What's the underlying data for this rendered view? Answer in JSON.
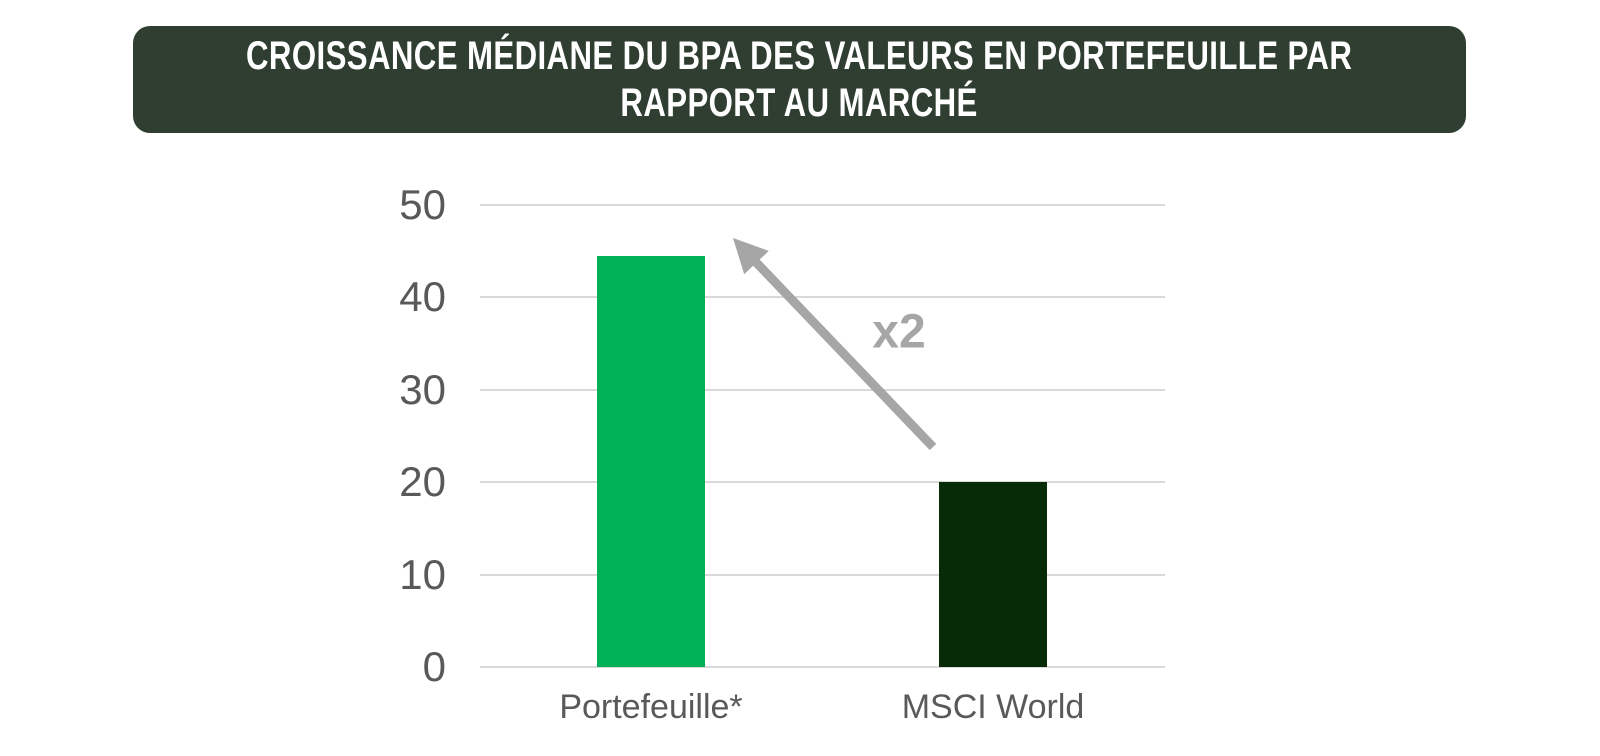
{
  "banner": {
    "title_line1": "CROISSANCE MÉDIANE DU BPA DES VALEURS EN PORTEFEUILLE PAR",
    "title_line2": "RAPPORT AU MARCHÉ",
    "background_color": "#2F3E30",
    "text_color": "#FFFFFF"
  },
  "chart_data": {
    "type": "bar",
    "title": "CROISSANCE MÉDIANE DU BPA DES VALEURS EN PORTEFEUILLE PAR RAPPORT AU MARCHÉ",
    "categories": [
      "Portefeuille*",
      "MSCI World"
    ],
    "values": [
      44.5,
      20
    ],
    "bar_colors": [
      "#00B158",
      "#072B07"
    ],
    "xlabel": "",
    "ylabel": "",
    "ylim": [
      0,
      50
    ],
    "yticks": [
      0,
      10,
      20,
      30,
      40,
      50
    ],
    "grid": true,
    "legend_position": "none",
    "annotation": {
      "label": "x2",
      "color": "#A6A6A6",
      "arrow": "diagonal, pointing from MSCI World bar up-left toward Portefeuille bar"
    }
  },
  "styles": {
    "background": "#FFFFFF",
    "grid_color": "#D9D9D9",
    "axis_label_color": "#595959",
    "annotation_color": "#A6A6A6"
  }
}
